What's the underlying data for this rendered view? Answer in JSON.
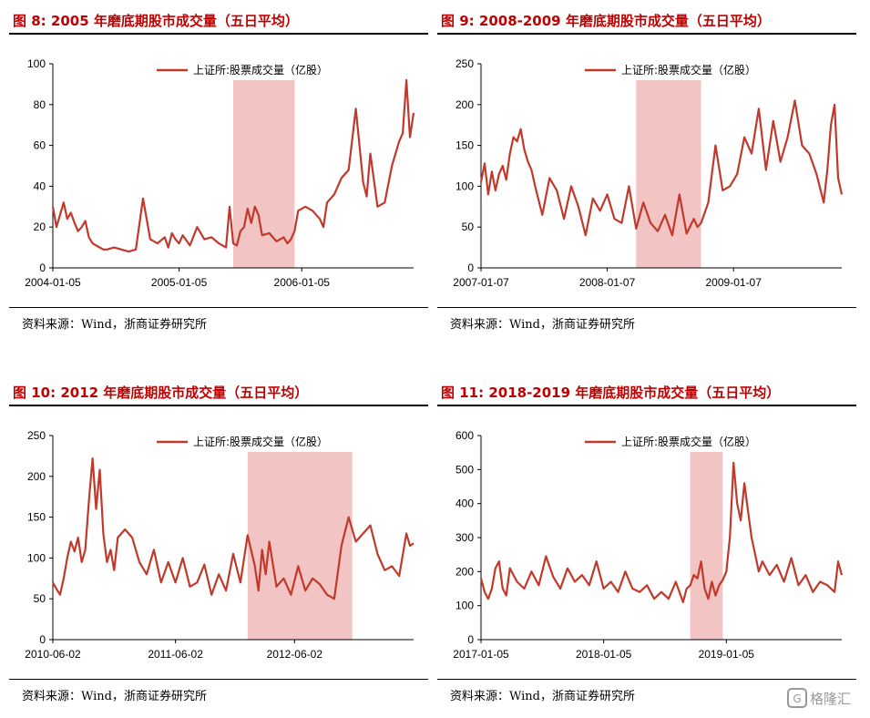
{
  "source_label": "资料来源：Wind，浙商证券研究所",
  "accent_color": "#c0392b",
  "shade_color": "#f2c4c4",
  "watermark": "格隆汇",
  "chart_data": [
    {
      "type": "line",
      "title": "图  8: 2005 年磨底期股市成交量（五日平均）",
      "legend": "上证所:股票成交量（亿股）",
      "ylim": [
        0,
        100
      ],
      "yticks": [
        0,
        20,
        40,
        60,
        80,
        100
      ],
      "xrange": [
        0,
        100
      ],
      "xticks": [
        {
          "pos": 0,
          "label": "2004-01-05"
        },
        {
          "pos": 35,
          "label": "2005-01-05"
        },
        {
          "pos": 69,
          "label": "2006-01-05"
        }
      ],
      "shade": [
        50,
        67
      ],
      "series": [
        {
          "name": "上证所:股票成交量（亿股）",
          "x": [
            0,
            1,
            2,
            3,
            4,
            5,
            6,
            7,
            8,
            9,
            10,
            11,
            12,
            13,
            14,
            15,
            17,
            19,
            21,
            23,
            25,
            27,
            29,
            31,
            32,
            33,
            34,
            35,
            36,
            38,
            40,
            42,
            44,
            46,
            48,
            49,
            50,
            51,
            52,
            53,
            54,
            55,
            56,
            57,
            58,
            60,
            62,
            64,
            65,
            66,
            67,
            68,
            70,
            72,
            74,
            75,
            76,
            78,
            80,
            82,
            84,
            85,
            86,
            87,
            88,
            90,
            92,
            94,
            96,
            97,
            98,
            99,
            100
          ],
          "values": [
            30,
            20,
            26,
            32,
            24,
            27,
            22,
            18,
            20,
            23,
            15,
            12,
            11,
            10,
            9,
            9,
            10,
            9,
            8,
            9,
            34,
            14,
            12,
            15,
            10,
            17,
            14,
            12,
            16,
            11,
            20,
            14,
            15,
            12,
            10,
            30,
            12,
            11,
            18,
            20,
            29,
            22,
            30,
            26,
            16,
            17,
            13,
            15,
            12,
            14,
            18,
            28,
            30,
            28,
            24,
            20,
            32,
            36,
            44,
            48,
            78,
            60,
            42,
            35,
            56,
            30,
            32,
            50,
            62,
            66,
            92,
            64,
            76
          ]
        }
      ]
    },
    {
      "type": "line",
      "title": "图  9: 2008-2009 年磨底期股市成交量（五日平均）",
      "legend": "上证所:股票成交量（亿股）",
      "ylim": [
        0,
        250
      ],
      "yticks": [
        0,
        50,
        100,
        150,
        200,
        250
      ],
      "xrange": [
        0,
        100
      ],
      "xticks": [
        {
          "pos": 0,
          "label": "2007-01-07"
        },
        {
          "pos": 35,
          "label": "2008-01-07"
        },
        {
          "pos": 70,
          "label": "2009-01-07"
        }
      ],
      "shade": [
        43,
        61
      ],
      "series": [
        {
          "name": "上证所:股票成交量（亿股）",
          "x": [
            0,
            1,
            2,
            3,
            4,
            5,
            6,
            7,
            8,
            9,
            10,
            11,
            12,
            13,
            14,
            15,
            17,
            19,
            21,
            23,
            25,
            27,
            29,
            31,
            33,
            35,
            37,
            39,
            41,
            43,
            45,
            47,
            49,
            51,
            53,
            55,
            57,
            59,
            60,
            61,
            63,
            65,
            67,
            69,
            71,
            73,
            75,
            77,
            79,
            81,
            83,
            85,
            87,
            89,
            91,
            93,
            95,
            96,
            97,
            98,
            99,
            100
          ],
          "values": [
            105,
            128,
            90,
            118,
            95,
            115,
            125,
            108,
            140,
            160,
            155,
            170,
            145,
            130,
            120,
            100,
            65,
            110,
            95,
            60,
            100,
            75,
            40,
            85,
            70,
            90,
            60,
            55,
            100,
            48,
            80,
            55,
            45,
            65,
            40,
            90,
            42,
            60,
            50,
            55,
            80,
            150,
            95,
            100,
            115,
            160,
            140,
            195,
            120,
            180,
            130,
            160,
            205,
            150,
            140,
            115,
            80,
            120,
            175,
            200,
            110,
            90
          ]
        }
      ]
    },
    {
      "type": "line",
      "title": "图  10: 2012 年磨底期股市成交量（五日平均）",
      "legend": "上证所:股票成交量（亿股）",
      "ylim": [
        0,
        250
      ],
      "yticks": [
        0,
        50,
        100,
        150,
        200,
        250
      ],
      "xrange": [
        0,
        100
      ],
      "xticks": [
        {
          "pos": 0,
          "label": "2010-06-02"
        },
        {
          "pos": 34,
          "label": "2011-06-02"
        },
        {
          "pos": 67,
          "label": "2012-06-02"
        }
      ],
      "shade": [
        54,
        83
      ],
      "series": [
        {
          "name": "上证所:股票成交量（亿股）",
          "x": [
            0,
            1,
            2,
            3,
            4,
            5,
            6,
            7,
            8,
            9,
            10,
            11,
            12,
            13,
            14,
            15,
            16,
            17,
            18,
            20,
            22,
            24,
            26,
            28,
            30,
            32,
            34,
            36,
            38,
            40,
            42,
            44,
            46,
            48,
            50,
            52,
            54,
            56,
            57,
            58,
            59,
            60,
            62,
            64,
            66,
            68,
            70,
            72,
            74,
            76,
            78,
            80,
            82,
            84,
            86,
            88,
            90,
            92,
            94,
            96,
            98,
            99,
            100
          ],
          "values": [
            70,
            62,
            55,
            75,
            100,
            120,
            108,
            125,
            95,
            110,
            170,
            222,
            160,
            208,
            130,
            95,
            110,
            85,
            125,
            135,
            125,
            95,
            80,
            110,
            70,
            95,
            70,
            100,
            65,
            70,
            92,
            55,
            80,
            60,
            105,
            70,
            128,
            90,
            60,
            110,
            80,
            120,
            65,
            75,
            55,
            90,
            60,
            75,
            68,
            55,
            50,
            115,
            150,
            120,
            130,
            140,
            105,
            85,
            90,
            78,
            130,
            115,
            118
          ]
        }
      ]
    },
    {
      "type": "line",
      "title": "图  11: 2018-2019 年磨底期股市成交量（五日平均）",
      "legend": "上证所:股票成交量（亿股）",
      "ylim": [
        0,
        600
      ],
      "yticks": [
        0,
        100,
        200,
        300,
        400,
        500,
        600
      ],
      "xrange": [
        0,
        100
      ],
      "xticks": [
        {
          "pos": 0,
          "label": "2017-01-05"
        },
        {
          "pos": 34,
          "label": "2018-01-05"
        },
        {
          "pos": 68,
          "label": "2019-01-05"
        }
      ],
      "shade": [
        58,
        67
      ],
      "series": [
        {
          "name": "上证所:股票成交量（亿股）",
          "x": [
            0,
            1,
            2,
            3,
            4,
            5,
            6,
            7,
            8,
            9,
            10,
            12,
            14,
            16,
            18,
            20,
            22,
            24,
            26,
            28,
            30,
            32,
            34,
            36,
            38,
            40,
            42,
            44,
            46,
            48,
            50,
            52,
            54,
            56,
            57,
            58,
            59,
            60,
            61,
            62,
            63,
            64,
            65,
            66,
            67,
            68,
            69,
            70,
            71,
            72,
            73,
            74,
            75,
            76,
            77,
            78,
            80,
            82,
            84,
            86,
            88,
            90,
            92,
            94,
            96,
            98,
            99,
            100
          ],
          "values": [
            180,
            140,
            120,
            150,
            210,
            230,
            150,
            130,
            210,
            190,
            170,
            150,
            200,
            160,
            245,
            185,
            150,
            210,
            170,
            190,
            160,
            230,
            150,
            170,
            140,
            200,
            150,
            140,
            160,
            120,
            140,
            120,
            170,
            110,
            150,
            160,
            190,
            180,
            230,
            150,
            120,
            170,
            130,
            160,
            175,
            200,
            300,
            520,
            400,
            350,
            460,
            380,
            300,
            250,
            200,
            230,
            190,
            220,
            170,
            240,
            160,
            190,
            140,
            170,
            160,
            140,
            230,
            190
          ]
        }
      ]
    }
  ]
}
